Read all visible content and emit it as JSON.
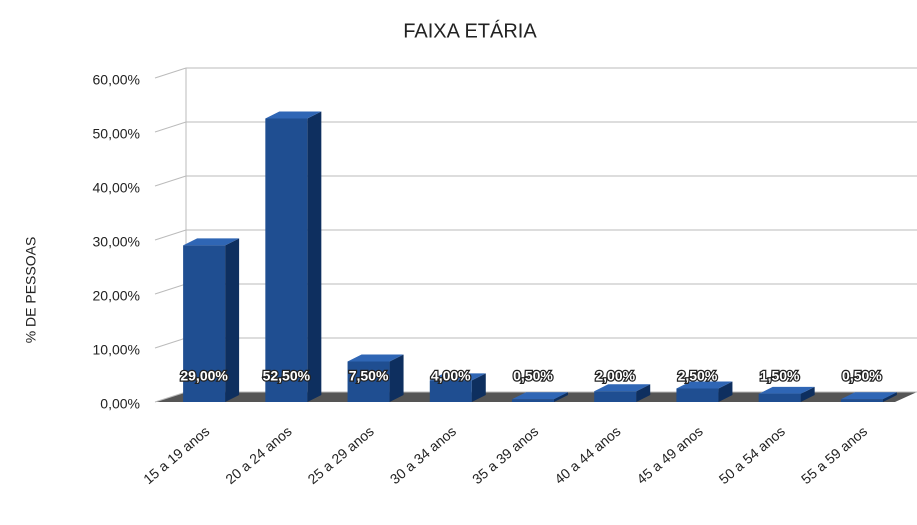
{
  "chart_data": {
    "type": "bar3d",
    "title": "FAIXA ETÁRIA",
    "y_label": "% DE PESSOAS",
    "categories": [
      "15 a 19 anos",
      "20 a 24 anos",
      "25 a 29 anos",
      "30 a 34 anos",
      "35 a 39 anos",
      "40 a 44 anos",
      "45 a 49 anos",
      "50 a 54 anos",
      "55 a 59 anos"
    ],
    "values": [
      29,
      52.5,
      7.5,
      4,
      0.5,
      2,
      2.5,
      1.5,
      0.5
    ],
    "value_labels": [
      "29,00%",
      "52,50%",
      "7,50%",
      "4,00%",
      "0,50%",
      "2,00%",
      "2,50%",
      "1,50%",
      "0,50%"
    ],
    "color": "#1f4e91",
    "ylim": [
      0,
      60
    ],
    "yticks": [
      {
        "value": 0,
        "label": "0,00%"
      },
      {
        "value": 10,
        "label": "10,00%"
      },
      {
        "value": 20,
        "label": "20,00%"
      },
      {
        "value": 30,
        "label": "30,00%"
      },
      {
        "value": 40,
        "label": "40,00%"
      },
      {
        "value": 50,
        "label": "50,00%"
      },
      {
        "value": 60,
        "label": "60,00%"
      }
    ],
    "grid": true
  }
}
